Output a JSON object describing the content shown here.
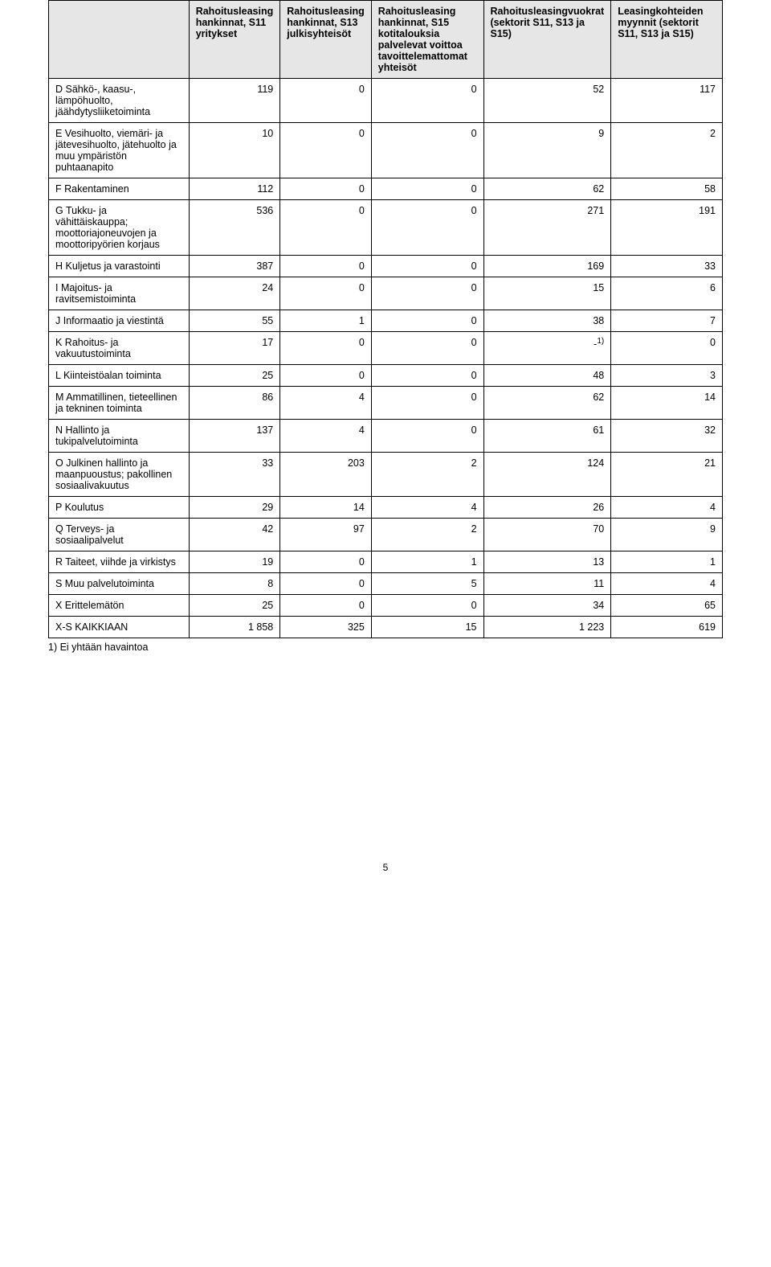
{
  "table": {
    "columns": [
      "",
      "Rahoitusleasing hankinnat, S11 yritykset",
      "Rahoitusleasing hankinnat, S13 julkisyhteisöt",
      "Rahoitusleasing hankinnat, S15 kotitalouksia palvelevat voittoa tavoittelemattomat yhteisöt",
      "Rahoitusleasingvuokrat (sektorit S11, S13 ja S15)",
      "Leasingkohteiden myynnit (sektorit S11, S13 ja S15)"
    ],
    "col_widths": [
      "22%",
      "13%",
      "13%",
      "17%",
      "18%",
      "17%"
    ],
    "header_bg": "#e6e6e6",
    "rows": [
      {
        "label": "D Sähkö-, kaasu-, lämpöhuolto, jäähdytysliiketoiminta",
        "vals": [
          "119",
          "0",
          "0",
          "52",
          "117"
        ]
      },
      {
        "label": "E Vesihuolto, viemäri- ja jätevesihuolto, jätehuolto ja muu ympäristön puhtaanapito",
        "vals": [
          "10",
          "0",
          "0",
          "9",
          "2"
        ]
      },
      {
        "label": "F Rakentaminen",
        "vals": [
          "112",
          "0",
          "0",
          "62",
          "58"
        ]
      },
      {
        "label": "G Tukku- ja vähittäiskauppa; moottoriajoneuvojen ja moottoripyörien korjaus",
        "vals": [
          "536",
          "0",
          "0",
          "271",
          "191"
        ]
      },
      {
        "label": "H Kuljetus ja varastointi",
        "vals": [
          "387",
          "0",
          "0",
          "169",
          "33"
        ]
      },
      {
        "label": "I Majoitus- ja ravitsemistoiminta",
        "vals": [
          "24",
          "0",
          "0",
          "15",
          "6"
        ]
      },
      {
        "label": "J Informaatio ja viestintä",
        "vals": [
          "55",
          "1",
          "0",
          "38",
          "7"
        ]
      },
      {
        "label": "K Rahoitus- ja vakuutustoiminta",
        "vals": [
          "17",
          "0",
          "0",
          "-",
          "0"
        ],
        "footnote_col": 3,
        "footnote_mark": "1)"
      },
      {
        "label": "L Kiinteistöalan toiminta",
        "vals": [
          "25",
          "0",
          "0",
          "48",
          "3"
        ]
      },
      {
        "label": "M Ammatillinen, tieteellinen ja tekninen toiminta",
        "vals": [
          "86",
          "4",
          "0",
          "62",
          "14"
        ]
      },
      {
        "label": "N Hallinto ja tukipalvelutoiminta",
        "vals": [
          "137",
          "4",
          "0",
          "61",
          "32"
        ]
      },
      {
        "label": "O Julkinen hallinto ja maanpuoustus; pakollinen sosiaalivakuutus",
        "vals": [
          "33",
          "203",
          "2",
          "124",
          "21"
        ]
      },
      {
        "label": "P Koulutus",
        "vals": [
          "29",
          "14",
          "4",
          "26",
          "4"
        ]
      },
      {
        "label": "Q Terveys- ja sosiaalipalvelut",
        "vals": [
          "42",
          "97",
          "2",
          "70",
          "9"
        ]
      },
      {
        "label": "R Taiteet, viihde ja virkistys",
        "vals": [
          "19",
          "0",
          "1",
          "13",
          "1"
        ]
      },
      {
        "label": "S Muu palvelutoiminta",
        "vals": [
          "8",
          "0",
          "5",
          "11",
          "4"
        ]
      },
      {
        "label": "X Erittelemätön",
        "vals": [
          "25",
          "0",
          "0",
          "34",
          "65"
        ]
      },
      {
        "label": "X-S KAIKKIAAN",
        "vals": [
          "1 858",
          "325",
          "15",
          "1 223",
          "619"
        ]
      }
    ],
    "footnote": "1) Ei yhtään havaintoa",
    "page_number": "5"
  }
}
